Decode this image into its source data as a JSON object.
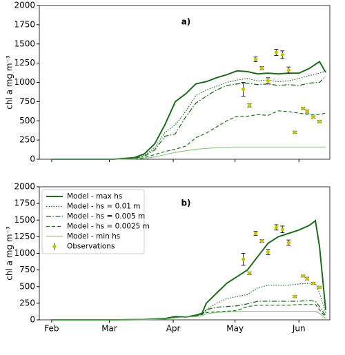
{
  "chart_data": [
    {
      "type": "line",
      "title": "a)",
      "ylabel": "chl a mg m⁻³",
      "xlim": [
        -6,
        135
      ],
      "xticks": [
        0,
        28,
        59,
        89,
        120
      ],
      "ylim": [
        0,
        2000
      ],
      "yticks": [
        0,
        250,
        500,
        750,
        1000,
        1250,
        1500,
        1750,
        2000
      ],
      "legend": false,
      "x": [
        0,
        30,
        40,
        45,
        50,
        55,
        60,
        65,
        70,
        75,
        80,
        85,
        90,
        95,
        100,
        105,
        110,
        115,
        120,
        125,
        130,
        133
      ],
      "series": [
        {
          "name": "Model - max hs",
          "color": "#1b6b1b",
          "linestyle": "solid",
          "linewidth": 2,
          "values": [
            0,
            0,
            20,
            70,
            200,
            450,
            750,
            850,
            980,
            1010,
            1060,
            1100,
            1150,
            1140,
            1110,
            1120,
            1110,
            1120,
            1120,
            1180,
            1270,
            1130
          ]
        },
        {
          "name": "Model - hs = 0.01 m",
          "color": "#1b6b1b",
          "linestyle": "dotted",
          "linewidth": 1.2,
          "values": [
            0,
            0,
            15,
            50,
            150,
            350,
            450,
            620,
            830,
            900,
            950,
            1000,
            1030,
            1050,
            1020,
            1030,
            1010,
            1020,
            1050,
            1090,
            1120,
            1150
          ]
        },
        {
          "name": "Model - hs = 0.005 m",
          "color": "#1b6b1b",
          "linestyle": "dashdot",
          "linewidth": 1.3,
          "values": [
            0,
            0,
            10,
            40,
            120,
            300,
            330,
            550,
            730,
            820,
            900,
            960,
            980,
            990,
            970,
            980,
            960,
            970,
            960,
            990,
            1000,
            1080
          ]
        },
        {
          "name": "Model - hs = 0.0025 m",
          "color": "#1b6b1b",
          "linestyle": "dashed",
          "linewidth": 1.2,
          "values": [
            0,
            0,
            5,
            20,
            60,
            100,
            130,
            170,
            280,
            340,
            420,
            500,
            560,
            560,
            580,
            570,
            630,
            620,
            600,
            580,
            580,
            600
          ]
        },
        {
          "name": "Model - min hs",
          "color": "#7cbf6e",
          "linestyle": "solid",
          "linewidth": 1,
          "values": [
            0,
            0,
            2,
            10,
            30,
            60,
            90,
            110,
            130,
            140,
            150,
            155,
            160,
            160,
            160,
            160,
            160,
            160,
            160,
            160,
            160,
            160
          ]
        }
      ],
      "observations": {
        "name": "Observations",
        "color": "#c9c400",
        "x": [
          93,
          96,
          99,
          102,
          105,
          109,
          112,
          115,
          118,
          122,
          124,
          127,
          130
        ],
        "values": [
          910,
          700,
          1300,
          1185,
          1020,
          1390,
          1360,
          1160,
          350,
          660,
          620,
          550,
          490
        ],
        "errors": [
          90,
          20,
          30,
          20,
          40,
          40,
          50,
          40,
          15,
          15,
          20,
          15,
          15
        ]
      }
    },
    {
      "type": "line",
      "title": "b)",
      "ylabel": "chl a mg m⁻³",
      "xlim": [
        -6,
        135
      ],
      "xticks": [
        {
          "value": 0,
          "label": "Feb"
        },
        {
          "value": 28,
          "label": "Mar"
        },
        {
          "value": 59,
          "label": "Apr"
        },
        {
          "value": 89,
          "label": "May"
        },
        {
          "value": 120,
          "label": "Jun"
        }
      ],
      "ylim": [
        0,
        2000
      ],
      "yticks": [
        0,
        250,
        500,
        750,
        1000,
        1250,
        1500,
        1750,
        2000
      ],
      "legend": "upper left",
      "x": [
        0,
        30,
        45,
        55,
        60,
        65,
        70,
        73,
        75,
        80,
        85,
        90,
        95,
        100,
        105,
        110,
        115,
        120,
        125,
        128,
        130,
        133
      ],
      "series": [
        {
          "name": "Model - max hs",
          "color": "#1b6b1b",
          "linestyle": "solid",
          "linewidth": 2,
          "values": [
            0,
            0,
            5,
            20,
            50,
            40,
            70,
            100,
            250,
            400,
            550,
            650,
            750,
            950,
            1150,
            1250,
            1300,
            1350,
            1420,
            1490,
            1100,
            150
          ]
        },
        {
          "name": "Model - hs = 0.01 m",
          "color": "#1b6b1b",
          "linestyle": "dotted",
          "linewidth": 1.2,
          "values": [
            0,
            0,
            5,
            15,
            40,
            40,
            60,
            90,
            150,
            250,
            320,
            350,
            380,
            480,
            520,
            520,
            520,
            540,
            550,
            550,
            400,
            100
          ]
        },
        {
          "name": "Model - hs = 0.005 m",
          "color": "#1b6b1b",
          "linestyle": "dashdot",
          "linewidth": 1.3,
          "values": [
            0,
            0,
            5,
            15,
            40,
            40,
            60,
            80,
            150,
            190,
            200,
            210,
            240,
            280,
            280,
            280,
            280,
            280,
            290,
            280,
            200,
            60
          ]
        },
        {
          "name": "Model - hs = 0.0025 m",
          "color": "#1b6b1b",
          "linestyle": "dashed",
          "linewidth": 1.2,
          "values": [
            0,
            0,
            5,
            15,
            40,
            40,
            60,
            80,
            110,
            120,
            130,
            140,
            200,
            220,
            220,
            220,
            220,
            230,
            230,
            230,
            150,
            40
          ]
        },
        {
          "name": "Model - min hs",
          "color": "#7cbf6e",
          "linestyle": "solid",
          "linewidth": 1,
          "values": [
            0,
            0,
            3,
            10,
            30,
            40,
            50,
            60,
            90,
            110,
            120,
            125,
            130,
            130,
            130,
            130,
            130,
            130,
            130,
            130,
            100,
            20
          ]
        }
      ],
      "observations": {
        "name": "Observations",
        "color": "#c9c400",
        "x": [
          93,
          96,
          99,
          102,
          105,
          109,
          112,
          115,
          118,
          122,
          124,
          127,
          130
        ],
        "values": [
          910,
          700,
          1300,
          1185,
          1020,
          1390,
          1360,
          1160,
          350,
          660,
          620,
          550,
          490
        ],
        "errors": [
          90,
          20,
          30,
          20,
          40,
          40,
          50,
          40,
          15,
          15,
          20,
          15,
          15
        ]
      }
    }
  ]
}
